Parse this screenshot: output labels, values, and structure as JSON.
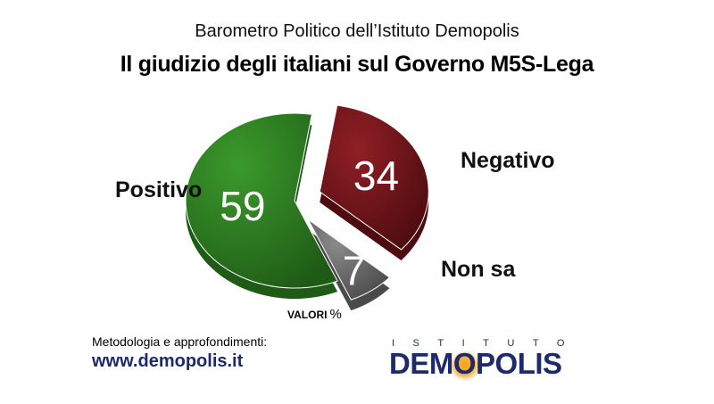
{
  "chart_data": {
    "type": "pie",
    "subtitle": "Barometro Politico dell’Istituto Demopolis",
    "title": "Il giudizio degli italiani sul Governo M5S-Lega",
    "units_label": "VALORI",
    "units_symbol": "%",
    "categories": [
      "Positivo",
      "Negativo",
      "Non sa"
    ],
    "values": [
      59,
      34,
      7
    ],
    "value_labels": [
      "59",
      "34",
      "7"
    ],
    "colors": [
      "#3b9a2c",
      "#8f1f25",
      "#8a8a8a"
    ],
    "dark_colors": [
      "#1f5b16",
      "#4e0c10",
      "#4a4a4a"
    ]
  },
  "footer": {
    "methodology": "Metodologia e approfondimenti:",
    "website": "www.demopolis.it"
  },
  "logo": {
    "top": "ISTITUTO",
    "main_before": "DEM",
    "main_accent": "O",
    "main_after": "POLIS",
    "accent_color": "#f6a21c"
  }
}
